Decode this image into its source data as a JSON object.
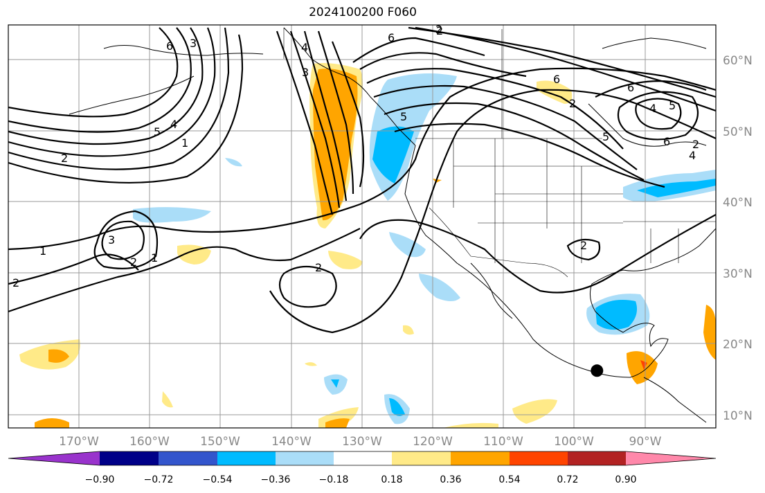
{
  "title": "2024100200 F060",
  "map": {
    "lon_range": [
      -180,
      -80
    ],
    "lat_range": [
      8,
      65
    ],
    "lat_labels": [
      "60°N",
      "50°N",
      "40°N",
      "30°N",
      "20°N",
      "10°N"
    ],
    "lon_labels": [
      "170°W",
      "160°W",
      "150°W",
      "140°W",
      "130°W",
      "120°W",
      "110°W",
      "100°W",
      "90°W"
    ],
    "contour_labels": [
      "6",
      "3",
      "2",
      "6",
      "2",
      "4",
      "3",
      "5",
      "6",
      "5",
      "4",
      "1",
      "2",
      "3",
      "2",
      "1",
      "1",
      "2",
      "2",
      "6",
      "4",
      "5",
      "6",
      "2",
      "2",
      "5",
      "4",
      "2"
    ],
    "marker": {
      "lon": -96.8,
      "lat": 16.1,
      "color": "#000000"
    }
  },
  "colorbar": {
    "colors": [
      "#9933cc",
      "#000088",
      "#3355cc",
      "#00bbff",
      "#aaddf8",
      "#ffffff",
      "#ffea88",
      "#ffa500",
      "#ff4400",
      "#b22222",
      "#ff88aa"
    ],
    "ticks": [
      "−0.90",
      "−0.72",
      "−0.54",
      "−0.36",
      "−0.18",
      "0.18",
      "0.36",
      "0.54",
      "0.72",
      "0.90"
    ]
  }
}
